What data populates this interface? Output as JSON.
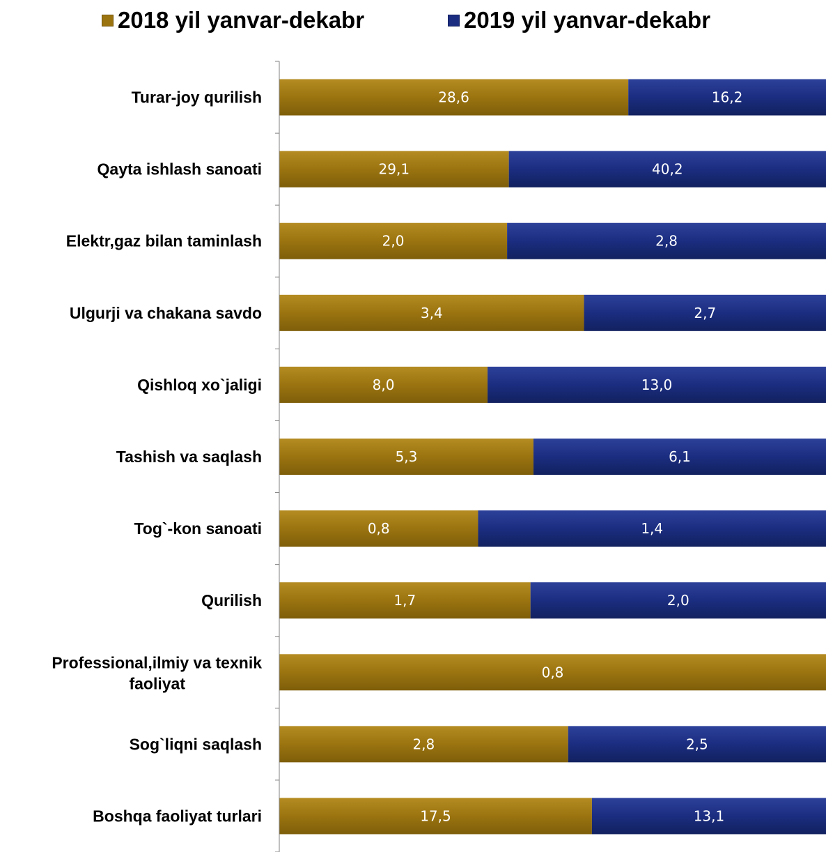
{
  "legend": {
    "series_2018": "2018 yil yanvar-dekabr",
    "series_2019": "2019 yil yanvar-dekabr"
  },
  "colors": {
    "series_2018": "#9B7410",
    "series_2019": "#1B2D80"
  },
  "chart_data": {
    "type": "bar",
    "orientation": "horizontal",
    "stacked": "100%",
    "legend_position": "top",
    "grid": false,
    "categories": [
      "Turar-joy qurilish",
      "Qayta ishlash sanoati",
      "Elektr,gaz bilan taminlash",
      "Ulgurji va chakana savdo",
      "Qishloq xo`jaligi",
      "Tashish va saqlash",
      "Tog`-kon sanoati",
      "Qurilish",
      "Professional,ilmiy va texnik faoliyat",
      "Sog`liqni saqlash",
      "Boshqa faoliyat turlari"
    ],
    "series": [
      {
        "name": "2018 yil yanvar-dekabr",
        "values": [
          28.6,
          29.1,
          2.0,
          3.4,
          8.0,
          5.3,
          0.8,
          1.7,
          0.8,
          2.8,
          17.5
        ],
        "labels": [
          "28,6",
          "29,1",
          "2,0",
          "3,4",
          "8,0",
          "5,3",
          "0,8",
          "1,7",
          "0,8",
          "2,8",
          "17,5"
        ]
      },
      {
        "name": "2019 yil yanvar-dekabr",
        "values": [
          16.2,
          40.2,
          2.8,
          2.7,
          13.0,
          6.1,
          1.4,
          2.0,
          0,
          2.5,
          13.1
        ],
        "labels": [
          "16,2",
          "40,2",
          "2,8",
          "2,7",
          "13,0",
          "6,1",
          "1,4",
          "2,0",
          "",
          "2,5",
          "13,1"
        ]
      }
    ]
  }
}
